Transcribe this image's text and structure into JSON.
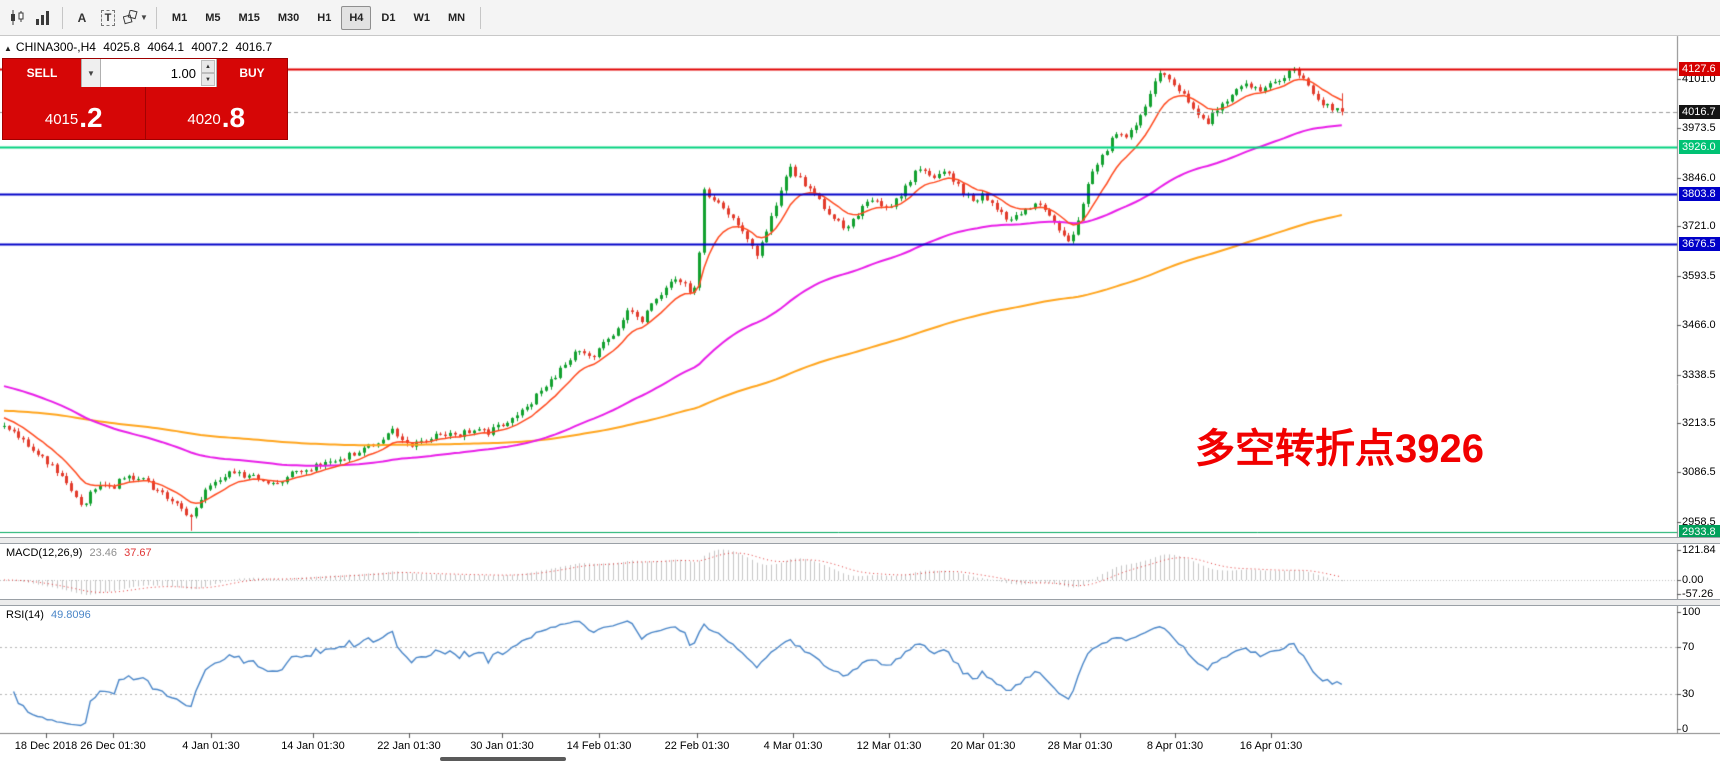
{
  "toolbar": {
    "icons": {
      "a_label": "A",
      "t_label": "T"
    },
    "timeframes": [
      "M1",
      "M5",
      "M15",
      "M30",
      "H1",
      "H4",
      "D1",
      "W1",
      "MN"
    ],
    "active_timeframe": "H4"
  },
  "header": {
    "collapse": "▲",
    "title": "CHINA300-,H4",
    "open": "4025.8",
    "high": "4064.1",
    "low": "4007.2",
    "close": "4016.7"
  },
  "trade_panel": {
    "sell_label": "SELL",
    "buy_label": "BUY",
    "volume": "1.00",
    "sell_price_main": "4015",
    "sell_price_pips": ".2",
    "buy_price_main": "4020",
    "buy_price_pips": ".8"
  },
  "annotation": {
    "text": "多空转折点3926",
    "color": "#f10000"
  },
  "macd_panel": {
    "name": "MACD(12,26,9)",
    "value_main": "23.46",
    "value_signal": "37.67",
    "axis": [
      {
        "v": 121.84,
        "label": "121.84"
      },
      {
        "v": 0,
        "label": "0.00"
      },
      {
        "v": -57.26,
        "label": "-57.26"
      }
    ]
  },
  "rsi_panel": {
    "name": "RSI(14)",
    "value": "49.8096",
    "axis": [
      {
        "v": 100,
        "label": "100"
      },
      {
        "v": 70,
        "label": "70"
      },
      {
        "v": 30,
        "label": "30"
      },
      {
        "v": 0,
        "label": "0"
      }
    ],
    "levels": [
      70,
      30
    ]
  },
  "chart_data": {
    "type": "candlestick",
    "symbol": "CHINA300-",
    "timeframe": "H4",
    "bars": 280,
    "ohlc_current": {
      "open": 4025.8,
      "high": 4064.1,
      "low": 4007.2,
      "close": 4016.7
    },
    "colors": {
      "up": "#12a12f",
      "down": "#e23b2c"
    },
    "y_axis_ticks": [
      4101.0,
      3973.5,
      3846.0,
      3721.0,
      3593.5,
      3466.0,
      3338.5,
      3213.5,
      3086.5,
      2958.5
    ],
    "x_axis_labels": [
      "18 Dec 2018",
      "26 Dec 01:30",
      "4 Jan 01:30",
      "14 Jan 01:30",
      "22 Jan 01:30",
      "30 Jan 01:30",
      "14 Feb 01:30",
      "22 Feb 01:30",
      "4 Mar 01:30",
      "12 Mar 01:30",
      "20 Mar 01:30",
      "28 Mar 01:30",
      "8 Apr 01:30",
      "16 Apr 01:30"
    ],
    "horizontal_levels": [
      {
        "price": 4127.6,
        "label": "4127.6",
        "line_color": "#e00000",
        "label_bg": "#d60000",
        "width": 2
      },
      {
        "price": 4016.7,
        "label": "4016.7",
        "line_color": "#9a9a9a",
        "label_bg": "#141414",
        "width": 1,
        "dashed": true
      },
      {
        "price": 3926.0,
        "label": "3926.0",
        "line_color": "#00d17e",
        "label_bg": "#00c274",
        "width": 2
      },
      {
        "price": 3803.8,
        "label": "3803.8",
        "line_color": "#0000c8",
        "label_bg": "#0000c8",
        "width": 2
      },
      {
        "price": 3676.5,
        "label": "3676.5",
        "line_color": "#0000c8",
        "label_bg": "#0000c8",
        "width": 2
      },
      {
        "price": 2933.8,
        "label": "2933.8",
        "line_color": "#00a85e",
        "label_bg": "#00a05a",
        "width": 1
      }
    ],
    "indicators": {
      "moving_averages": [
        {
          "period": 10,
          "color": "#ff4a1f",
          "seed": 3232,
          "width": 1.5
        },
        {
          "period": 70,
          "color": "#e81ee8",
          "seed": 3312,
          "width": 2
        },
        {
          "period": 200,
          "color": "#ffa51e",
          "seed": 3246,
          "width": 2
        }
      ],
      "macd": {
        "params": "12,26,9",
        "max_label": 121.84,
        "hist_color": "#c6c6c6",
        "signal_color": "#e03535"
      },
      "rsi": {
        "params": "14",
        "color": "#4a86c8",
        "levels": [
          70,
          30
        ]
      }
    },
    "close_path_anchors": [
      [
        0.004,
        3200
      ],
      [
        0.016,
        3165
      ],
      [
        0.029,
        3120
      ],
      [
        0.041,
        3085
      ],
      [
        0.051,
        3040
      ],
      [
        0.059,
        3000
      ],
      [
        0.065,
        3035
      ],
      [
        0.073,
        3060
      ],
      [
        0.082,
        3050
      ],
      [
        0.091,
        3080
      ],
      [
        0.102,
        3070
      ],
      [
        0.113,
        3045
      ],
      [
        0.122,
        3020
      ],
      [
        0.131,
        2995
      ],
      [
        0.139,
        2968
      ],
      [
        0.145,
        3010
      ],
      [
        0.155,
        3060
      ],
      [
        0.167,
        3085
      ],
      [
        0.18,
        3080
      ],
      [
        0.192,
        3070
      ],
      [
        0.204,
        3050
      ],
      [
        0.216,
        3085
      ],
      [
        0.231,
        3100
      ],
      [
        0.245,
        3110
      ],
      [
        0.261,
        3135
      ],
      [
        0.278,
        3160
      ],
      [
        0.29,
        3195
      ],
      [
        0.303,
        3155
      ],
      [
        0.314,
        3165
      ],
      [
        0.327,
        3190
      ],
      [
        0.339,
        3180
      ],
      [
        0.351,
        3200
      ],
      [
        0.363,
        3190
      ],
      [
        0.372,
        3210
      ],
      [
        0.384,
        3230
      ],
      [
        0.4,
        3290
      ],
      [
        0.416,
        3350
      ],
      [
        0.429,
        3400
      ],
      [
        0.439,
        3380
      ],
      [
        0.445,
        3415
      ],
      [
        0.457,
        3450
      ],
      [
        0.467,
        3505
      ],
      [
        0.476,
        3470
      ],
      [
        0.486,
        3530
      ],
      [
        0.495,
        3565
      ],
      [
        0.504,
        3590
      ],
      [
        0.513,
        3550
      ],
      [
        0.518,
        3560
      ],
      [
        0.523,
        3810
      ],
      [
        0.535,
        3780
      ],
      [
        0.545,
        3745
      ],
      [
        0.555,
        3690
      ],
      [
        0.563,
        3650
      ],
      [
        0.571,
        3720
      ],
      [
        0.58,
        3800
      ],
      [
        0.586,
        3880
      ],
      [
        0.59,
        3860
      ],
      [
        0.6,
        3820
      ],
      [
        0.611,
        3780
      ],
      [
        0.62,
        3745
      ],
      [
        0.629,
        3705
      ],
      [
        0.638,
        3755
      ],
      [
        0.649,
        3790
      ],
      [
        0.661,
        3760
      ],
      [
        0.671,
        3810
      ],
      [
        0.684,
        3875
      ],
      [
        0.694,
        3845
      ],
      [
        0.704,
        3865
      ],
      [
        0.714,
        3820
      ],
      [
        0.722,
        3790
      ],
      [
        0.732,
        3800
      ],
      [
        0.741,
        3770
      ],
      [
        0.751,
        3735
      ],
      [
        0.761,
        3760
      ],
      [
        0.771,
        3780
      ],
      [
        0.782,
        3745
      ],
      [
        0.79,
        3700
      ],
      [
        0.798,
        3680
      ],
      [
        0.804,
        3740
      ],
      [
        0.812,
        3850
      ],
      [
        0.823,
        3910
      ],
      [
        0.831,
        3965
      ],
      [
        0.839,
        3945
      ],
      [
        0.849,
        4000
      ],
      [
        0.859,
        4080
      ],
      [
        0.865,
        4120
      ],
      [
        0.872,
        4095
      ],
      [
        0.875,
        4085
      ],
      [
        0.883,
        4050
      ],
      [
        0.891,
        4015
      ],
      [
        0.9,
        3990
      ],
      [
        0.908,
        4030
      ],
      [
        0.918,
        4065
      ],
      [
        0.929,
        4085
      ],
      [
        0.939,
        4075
      ],
      [
        0.947,
        4090
      ],
      [
        0.957,
        4110
      ],
      [
        0.965,
        4125
      ],
      [
        0.973,
        4090
      ],
      [
        0.981,
        4050
      ],
      [
        0.989,
        4030
      ],
      [
        1.0,
        4017
      ]
    ]
  }
}
